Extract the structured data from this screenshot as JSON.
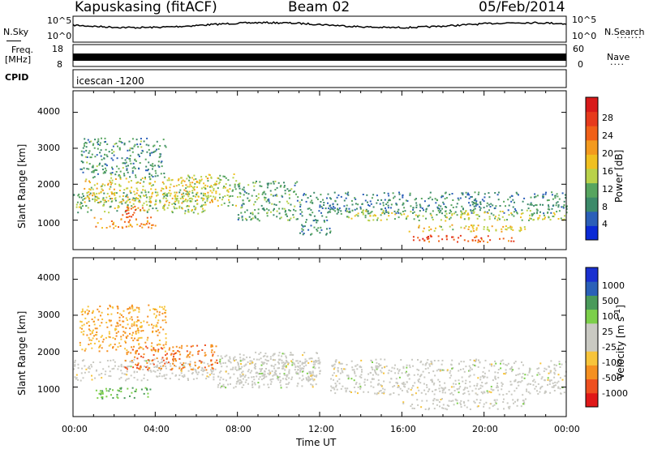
{
  "header": {
    "radar": "Kapuskasing (fitACF)",
    "beam": "Beam 02",
    "date": "05/Feb/2014"
  },
  "status_panels": {
    "nsky_label": "N.Sky",
    "nsky_ticks": [
      "10^5",
      "10^0"
    ],
    "nsearch_label": "N.Search",
    "nsearch_ticks": [
      "10^5",
      "10^0"
    ],
    "freq_label_1": "Freq.",
    "freq_label_2": "[MHz]",
    "freq_ticks": [
      "18",
      "8"
    ],
    "nave_label": "Nave",
    "nave_ticks": [
      "60",
      "0"
    ],
    "cpid_label": "CPID",
    "cpid_value": "icescan -1200"
  },
  "x_axis": {
    "label": "Time UT",
    "ticks": [
      "00:00",
      "04:00",
      "08:00",
      "12:00",
      "16:00",
      "20:00",
      "00:00"
    ]
  },
  "colors": {
    "power": [
      "#0a2ad6",
      "#2b5fb8",
      "#3c8a6a",
      "#57a55f",
      "#b9d24a",
      "#f0c020",
      "#f39a1e",
      "#f06018",
      "#e63a1c",
      "#d81a1a"
    ],
    "velocity": [
      "#e01818",
      "#ee5020",
      "#f59020",
      "#f7c43a",
      "#c9c9c2",
      "#c9c9c2",
      "#7ccf4a",
      "#4a9a5a",
      "#2a60b8",
      "#1a30d0"
    ]
  },
  "chart_data": [
    {
      "type": "heatmap",
      "name": "power",
      "title": "",
      "xlabel": "Time UT",
      "ylabel": "Slant Range [km]",
      "xlim_hours": [
        0,
        24
      ],
      "ylim_km": [
        180,
        4600
      ],
      "y_ticks": [
        1000,
        2000,
        3000,
        4000
      ],
      "colorbar": {
        "label": "Power [dB]",
        "ticks": [
          "28",
          "24",
          "20",
          "16",
          "12",
          "8",
          "4"
        ],
        "range": [
          0,
          30
        ]
      },
      "regions": [
        {
          "t": [
            0.0,
            6.5
          ],
          "r": [
            1200,
            1800
          ],
          "v": 10
        },
        {
          "t": [
            0.5,
            7.0
          ],
          "r": [
            1500,
            2200
          ],
          "v": 14
        },
        {
          "t": [
            0.3,
            4.5
          ],
          "r": [
            2200,
            3300
          ],
          "v": 7
        },
        {
          "t": [
            1.0,
            4.0
          ],
          "r": [
            800,
            1100
          ],
          "v": 18
        },
        {
          "t": [
            2.0,
            3.5
          ],
          "r": [
            1100,
            1400
          ],
          "v": 22
        },
        {
          "t": [
            5.5,
            8.0
          ],
          "r": [
            1400,
            2300
          ],
          "v": 12
        },
        {
          "t": [
            8.0,
            11.0
          ],
          "r": [
            1000,
            2100
          ],
          "v": 8
        },
        {
          "t": [
            11.0,
            12.5
          ],
          "r": [
            600,
            1800
          ],
          "v": 6
        },
        {
          "t": [
            12.5,
            24.0
          ],
          "r": [
            1200,
            1800
          ],
          "v": 6
        },
        {
          "t": [
            13.0,
            24.0
          ],
          "r": [
            1000,
            1300
          ],
          "v": 12
        },
        {
          "t": [
            16.0,
            22.0
          ],
          "r": [
            700,
            900
          ],
          "v": 14
        },
        {
          "t": [
            16.5,
            21.5
          ],
          "r": [
            400,
            600
          ],
          "v": 22
        }
      ]
    },
    {
      "type": "heatmap",
      "name": "velocity",
      "title": "",
      "xlabel": "Time UT",
      "ylabel": "Slant Range [km]",
      "xlim_hours": [
        0,
        24
      ],
      "ylim_km": [
        180,
        4600
      ],
      "y_ticks": [
        1000,
        2000,
        3000,
        4000
      ],
      "colorbar": {
        "label": "Velocity [m s^-1]",
        "ticks": [
          "1000",
          "500",
          "100",
          "25",
          "-25",
          "-100",
          "-500",
          "-1000"
        ],
        "range": [
          -1200,
          1200
        ]
      },
      "regions": [
        {
          "t": [
            0.0,
            12.0
          ],
          "r": [
            1200,
            1800
          ],
          "v": 0
        },
        {
          "t": [
            0.3,
            4.5
          ],
          "r": [
            2000,
            3300
          ],
          "v": -120
        },
        {
          "t": [
            2.5,
            7.0
          ],
          "r": [
            1500,
            2200
          ],
          "v": -300
        },
        {
          "t": [
            1.0,
            4.0
          ],
          "r": [
            700,
            1000
          ],
          "v": 60
        },
        {
          "t": [
            7.0,
            12.0
          ],
          "r": [
            1000,
            2000
          ],
          "v": 0
        },
        {
          "t": [
            12.5,
            24.0
          ],
          "r": [
            800,
            1800
          ],
          "v": 0
        },
        {
          "t": [
            16.0,
            22.0
          ],
          "r": [
            400,
            700
          ],
          "v": 0
        }
      ]
    }
  ]
}
